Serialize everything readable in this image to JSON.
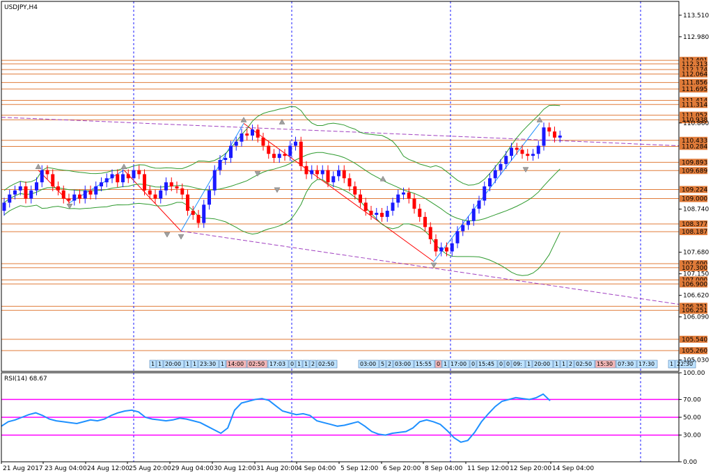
{
  "chart_data": {
    "type": "candlestick",
    "title": "USDJPY,H4",
    "price_ylim": [
      104.75,
      113.85
    ],
    "price_ticks": [
      "113.510",
      "112.980",
      "110.860",
      "108.740",
      "107.680",
      "107.150",
      "106.620",
      "106.090",
      "105.030"
    ],
    "level_lines": [
      "112.401",
      "112.313",
      "112.174",
      "112.064",
      "111.856",
      "111.695",
      "111.414",
      "111.314",
      "111.052",
      "110.938",
      "110.433",
      "110.284",
      "109.893",
      "109.689",
      "109.224",
      "109.000",
      "108.377",
      "108.187",
      "107.400",
      "107.300",
      "107.000",
      "106.900",
      "106.351",
      "106.251",
      "105.540",
      "105.260"
    ],
    "x_labels": [
      "21 Aug 2017",
      "23 Aug 04:00",
      "24 Aug 12:00",
      "25 Aug 20:00",
      "29 Aug 04:00",
      "30 Aug 12:00",
      "31 Aug 20:00",
      "4 Sep 04:00",
      "5 Sep 12:00",
      "6 Sep 20:00",
      "8 Sep 04:00",
      "11 Sep 12:00",
      "12 Sep 20:00",
      "14 Sep 04:00"
    ],
    "time_tags": [
      "1",
      "1",
      "20:00",
      "1",
      "1",
      "23:30",
      "1",
      "14:00",
      "02:50",
      "17:03",
      "0",
      "1",
      "1",
      "2",
      "02:50",
      "03:00",
      "5",
      "2",
      "03:00",
      "15:55",
      "0",
      "1",
      "17:00",
      "0",
      "15:45",
      "0",
      "0",
      "09:",
      "1",
      "20:00",
      "1",
      "1",
      "2",
      "02:50",
      "15:30",
      "07:30",
      "17:30",
      "1",
      "22:30"
    ],
    "close_series": [
      108.9,
      109.1,
      109.2,
      109.3,
      109.0,
      109.2,
      109.4,
      109.7,
      109.6,
      109.3,
      109.2,
      109.0,
      108.95,
      109.1,
      109.0,
      109.2,
      109.1,
      109.3,
      109.4,
      109.5,
      109.6,
      109.4,
      109.6,
      109.5,
      109.7,
      109.6,
      109.2,
      109.1,
      109.0,
      109.2,
      109.4,
      109.3,
      109.25,
      109.1,
      108.7,
      108.6,
      108.4,
      108.85,
      109.2,
      109.7,
      109.95,
      110.0,
      110.3,
      110.4,
      110.6,
      110.55,
      110.7,
      110.5,
      110.3,
      110.1,
      110.0,
      110.1,
      110.05,
      110.3,
      110.4,
      109.8,
      109.6,
      109.7,
      109.6,
      109.7,
      109.4,
      109.55,
      109.7,
      109.5,
      109.3,
      109.1,
      108.9,
      108.7,
      108.6,
      108.65,
      108.55,
      108.7,
      108.9,
      109.1,
      109.15,
      109.0,
      108.75,
      108.55,
      108.3,
      108.0,
      107.7,
      107.8,
      107.7,
      107.9,
      108.2,
      108.35,
      108.45,
      108.75,
      108.95,
      109.3,
      109.5,
      109.7,
      109.85,
      110.05,
      110.25,
      110.2,
      110.1,
      110.05,
      110.1,
      110.3,
      110.75,
      110.65,
      110.5,
      110.55
    ],
    "rsi": {
      "label": "RSI(14) 68.67",
      "ylim": [
        0,
        100
      ],
      "ticks": [
        "100.00",
        "70.00",
        "50.00",
        "30.00",
        "0.00"
      ],
      "levels": [
        70,
        50,
        30
      ],
      "values": [
        40,
        45,
        47,
        50,
        53,
        55,
        52,
        48,
        46,
        45,
        44,
        43,
        45,
        47,
        46,
        48,
        52,
        55,
        57,
        58,
        56,
        50,
        48,
        47,
        46,
        47,
        49,
        48,
        46,
        44,
        40,
        36,
        32,
        38,
        58,
        66,
        68,
        70,
        71,
        69,
        63,
        57,
        55,
        53,
        54,
        52,
        46,
        44,
        42,
        40,
        41,
        43,
        45,
        40,
        34,
        31,
        30,
        32,
        33,
        34,
        38,
        45,
        47,
        45,
        42,
        35,
        27,
        22,
        24,
        33,
        45,
        54,
        62,
        68,
        70,
        72,
        71,
        70,
        72,
        76,
        68.67
      ]
    },
    "colors": {
      "bull": "#1a1aff",
      "bear": "#ff0000",
      "bands": "#2e9a2e",
      "level": "#e07b39",
      "rsi": "#1e90ff",
      "rsi_level": "#ff00ff",
      "trend": "#a040c0",
      "grid": "#1a1aff"
    }
  }
}
